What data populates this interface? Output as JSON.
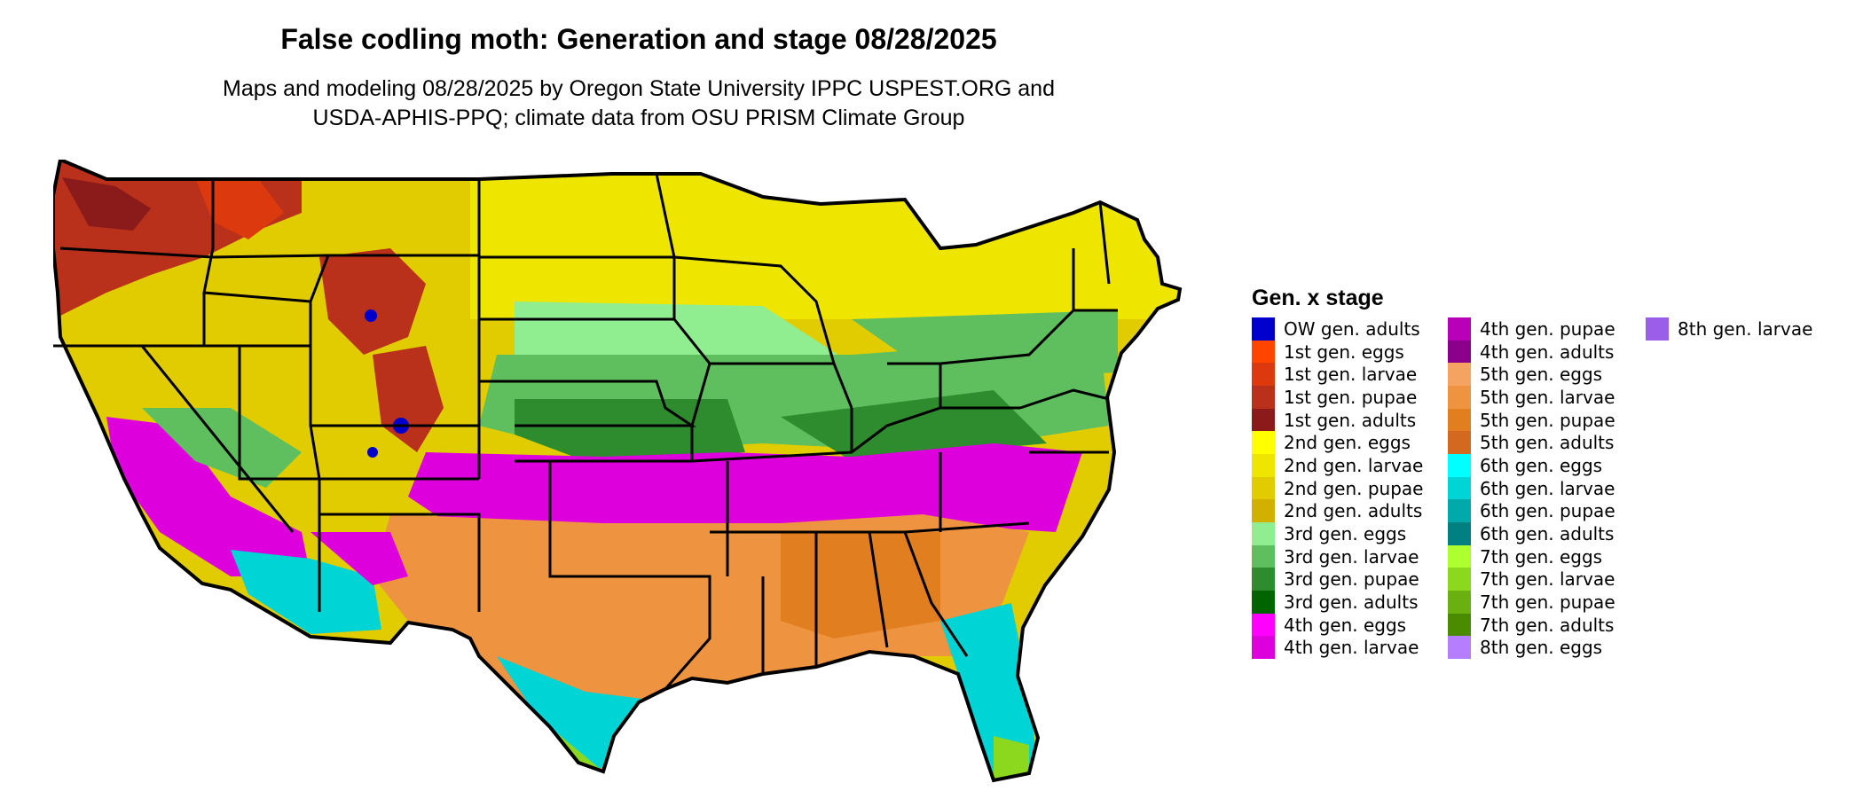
{
  "title": "False codling moth: Generation and stage 08/28/2025",
  "subtitle_line1": "Maps and modeling 08/28/2025 by Oregon State University IPPC USPEST.ORG and",
  "subtitle_line2": "USDA-APHIS-PPQ; climate data from OSU PRISM Climate Group",
  "legend": {
    "title": "Gen. x stage",
    "columns": [
      [
        {
          "label": "OW gen. adults",
          "color": "#0000cd"
        },
        {
          "label": "1st gen. eggs",
          "color": "#ff4500"
        },
        {
          "label": "1st gen. larvae",
          "color": "#dc3a0e"
        },
        {
          "label": "1st gen. pupae",
          "color": "#b9301b"
        },
        {
          "label": "1st gen. adults",
          "color": "#8b1a1a"
        },
        {
          "label": "2nd gen. eggs",
          "color": "#ffff00"
        },
        {
          "label": "2nd gen. larvae",
          "color": "#eee600"
        },
        {
          "label": "2nd gen. pupae",
          "color": "#e0cc00"
        },
        {
          "label": "2nd gen. adults",
          "color": "#d2b000"
        },
        {
          "label": "3rd gen. eggs",
          "color": "#90ee90"
        },
        {
          "label": "3rd gen. larvae",
          "color": "#5fbf5f"
        },
        {
          "label": "3rd gen. pupae",
          "color": "#2e8b2e"
        },
        {
          "label": "3rd gen. adults",
          "color": "#006400"
        },
        {
          "label": "4th gen. eggs",
          "color": "#ff00ff"
        },
        {
          "label": "4th gen. larvae",
          "color": "#dd00dd"
        }
      ],
      [
        {
          "label": "4th gen. pupae",
          "color": "#b800b8"
        },
        {
          "label": "4th gen. adults",
          "color": "#8b008b"
        },
        {
          "label": "5th gen. eggs",
          "color": "#f4a460"
        },
        {
          "label": "5th gen. larvae",
          "color": "#ee9340"
        },
        {
          "label": "5th gen. pupae",
          "color": "#e07e20"
        },
        {
          "label": "5th gen. adults",
          "color": "#d2691e"
        },
        {
          "label": "6th gen. eggs",
          "color": "#00ffff"
        },
        {
          "label": "6th gen. larvae",
          "color": "#00d4d4"
        },
        {
          "label": "6th gen. pupae",
          "color": "#00aaaa"
        },
        {
          "label": "6th gen. adults",
          "color": "#008080"
        },
        {
          "label": "7th gen. eggs",
          "color": "#adff2f"
        },
        {
          "label": "7th gen. larvae",
          "color": "#8cd81e"
        },
        {
          "label": "7th gen. pupae",
          "color": "#6ab010"
        },
        {
          "label": "7th gen. adults",
          "color": "#4a8b00"
        },
        {
          "label": "8th gen. eggs",
          "color": "#b57eff"
        }
      ],
      [
        {
          "label": "8th gen. larvae",
          "color": "#9b5ee8"
        }
      ]
    ]
  }
}
